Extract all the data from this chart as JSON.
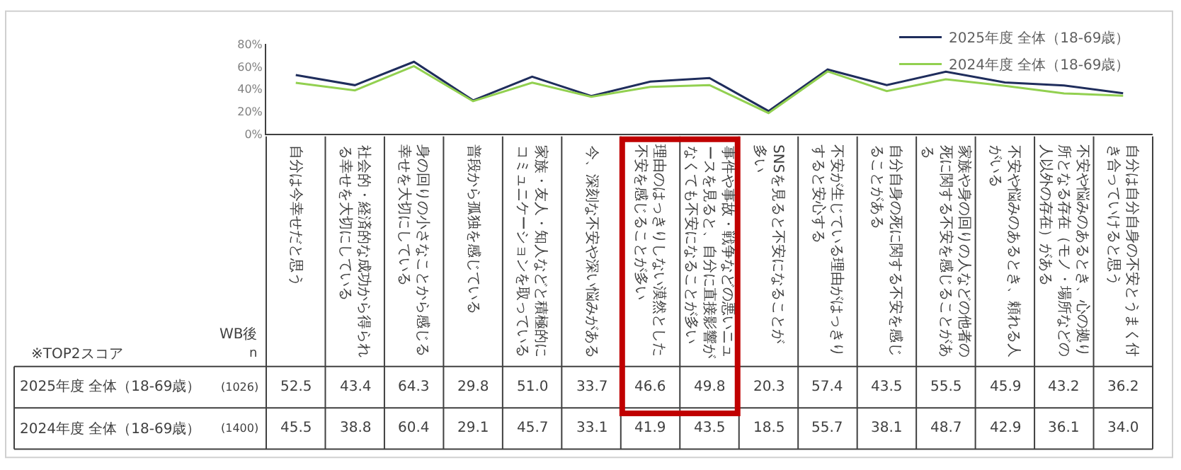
{
  "chart_data": {
    "type": "line",
    "categories": [
      "自分は今幸せだと思う",
      "社会的・経済的な成功から得られる幸せを大切にしている",
      "身の回りの小さなことから感じる幸せを大切にしている",
      "普段から孤独を感じている",
      "家族・友人・知人などと積極的にコミュニケーションを取っている",
      "今、深刻な不安や深い悩みがある",
      "理由のはっきりしない漠然とした不安を感じることが多い",
      "事件や事故・戦争などの悪いニュースを見ると、自分に直接影響がなくても不安になることが多い",
      "SNSを見ると不安になることが多い",
      "不安が生じている理由がはっきりすると安心する",
      "自分自身の死に関する不安を感じることがある",
      "家族や身の回りの人などの他者の死に関する不安を感じることがある",
      "不安や悩みのあるとき、頼れる人がいる",
      "不安や悩みのあるとき、心の拠り所となる存在（モノ・場所などの人以外の存在）がある",
      "自分は自分自身の不安とうまく付き合っていけると思う"
    ],
    "series": [
      {
        "name": "2025年度 全体（18-69歳）",
        "color": "#1f2d5c",
        "values": [
          52.5,
          43.4,
          64.3,
          29.8,
          51.0,
          33.7,
          46.6,
          49.8,
          20.3,
          57.4,
          43.5,
          55.5,
          45.9,
          43.2,
          36.2
        ],
        "value_labels": [
          "52.5",
          "43.4",
          "64.3",
          "29.8",
          "51.0",
          "33.7",
          "46.6",
          "49.8",
          "20.3",
          "57.4",
          "43.5",
          "55.5",
          "45.9",
          "43.2",
          "36.2"
        ]
      },
      {
        "name": "2024年度 全体（18-69歳）",
        "color": "#92d050",
        "values": [
          45.5,
          38.8,
          60.4,
          29.1,
          45.7,
          33.1,
          41.9,
          43.5,
          18.5,
          55.7,
          38.1,
          48.7,
          42.9,
          36.1,
          34.0
        ],
        "value_labels": [
          "45.5",
          "38.8",
          "60.4",
          "29.1",
          "45.7",
          "33.1",
          "41.9",
          "43.5",
          "18.5",
          "55.7",
          "38.1",
          "48.7",
          "42.9",
          "36.1",
          "34.0"
        ]
      }
    ],
    "ylim": [
      0,
      80
    ],
    "yticks": [
      {
        "value": 0,
        "label": "0%"
      },
      {
        "value": 20,
        "label": "20%"
      },
      {
        "value": 40,
        "label": "40%"
      },
      {
        "value": 60,
        "label": "60%"
      },
      {
        "value": 80,
        "label": "80%"
      }
    ],
    "annotations": [
      "WB後",
      "n",
      "※TOP2スコア",
      "(1026)",
      "(1400)"
    ],
    "legend": "top right",
    "line_style": "solid"
  }
}
